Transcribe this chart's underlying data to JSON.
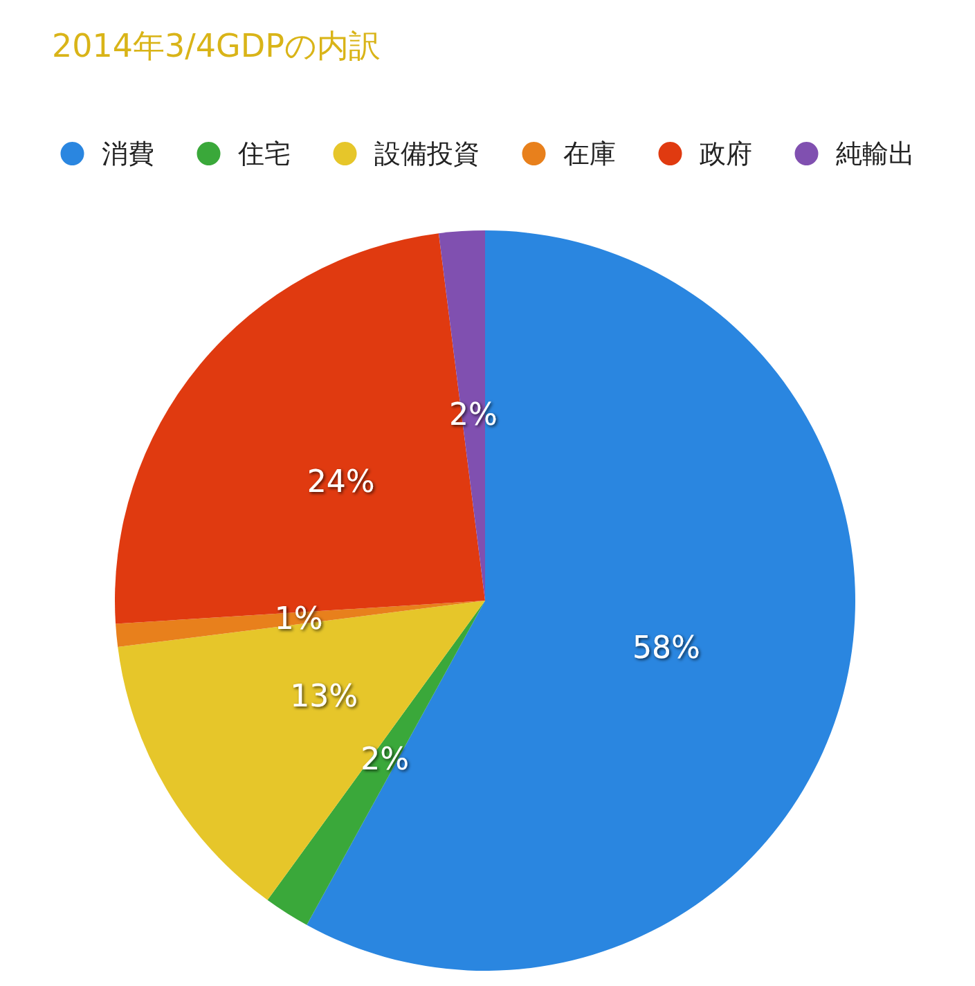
{
  "chart_data": {
    "type": "pie",
    "title": "2014年3/4GDPの内訳",
    "categories": [
      "消費",
      "住宅",
      "設備投資",
      "在庫",
      "政府",
      "純輸出"
    ],
    "values": [
      58,
      2,
      13,
      1,
      24,
      2
    ],
    "colors": [
      "#2a86e0",
      "#3aa83a",
      "#e6c62a",
      "#e8801c",
      "#e03a10",
      "#8050b0"
    ],
    "value_labels": [
      "58%",
      "2%",
      "13%",
      "1%",
      "24%",
      "2%"
    ],
    "legend": "top"
  }
}
